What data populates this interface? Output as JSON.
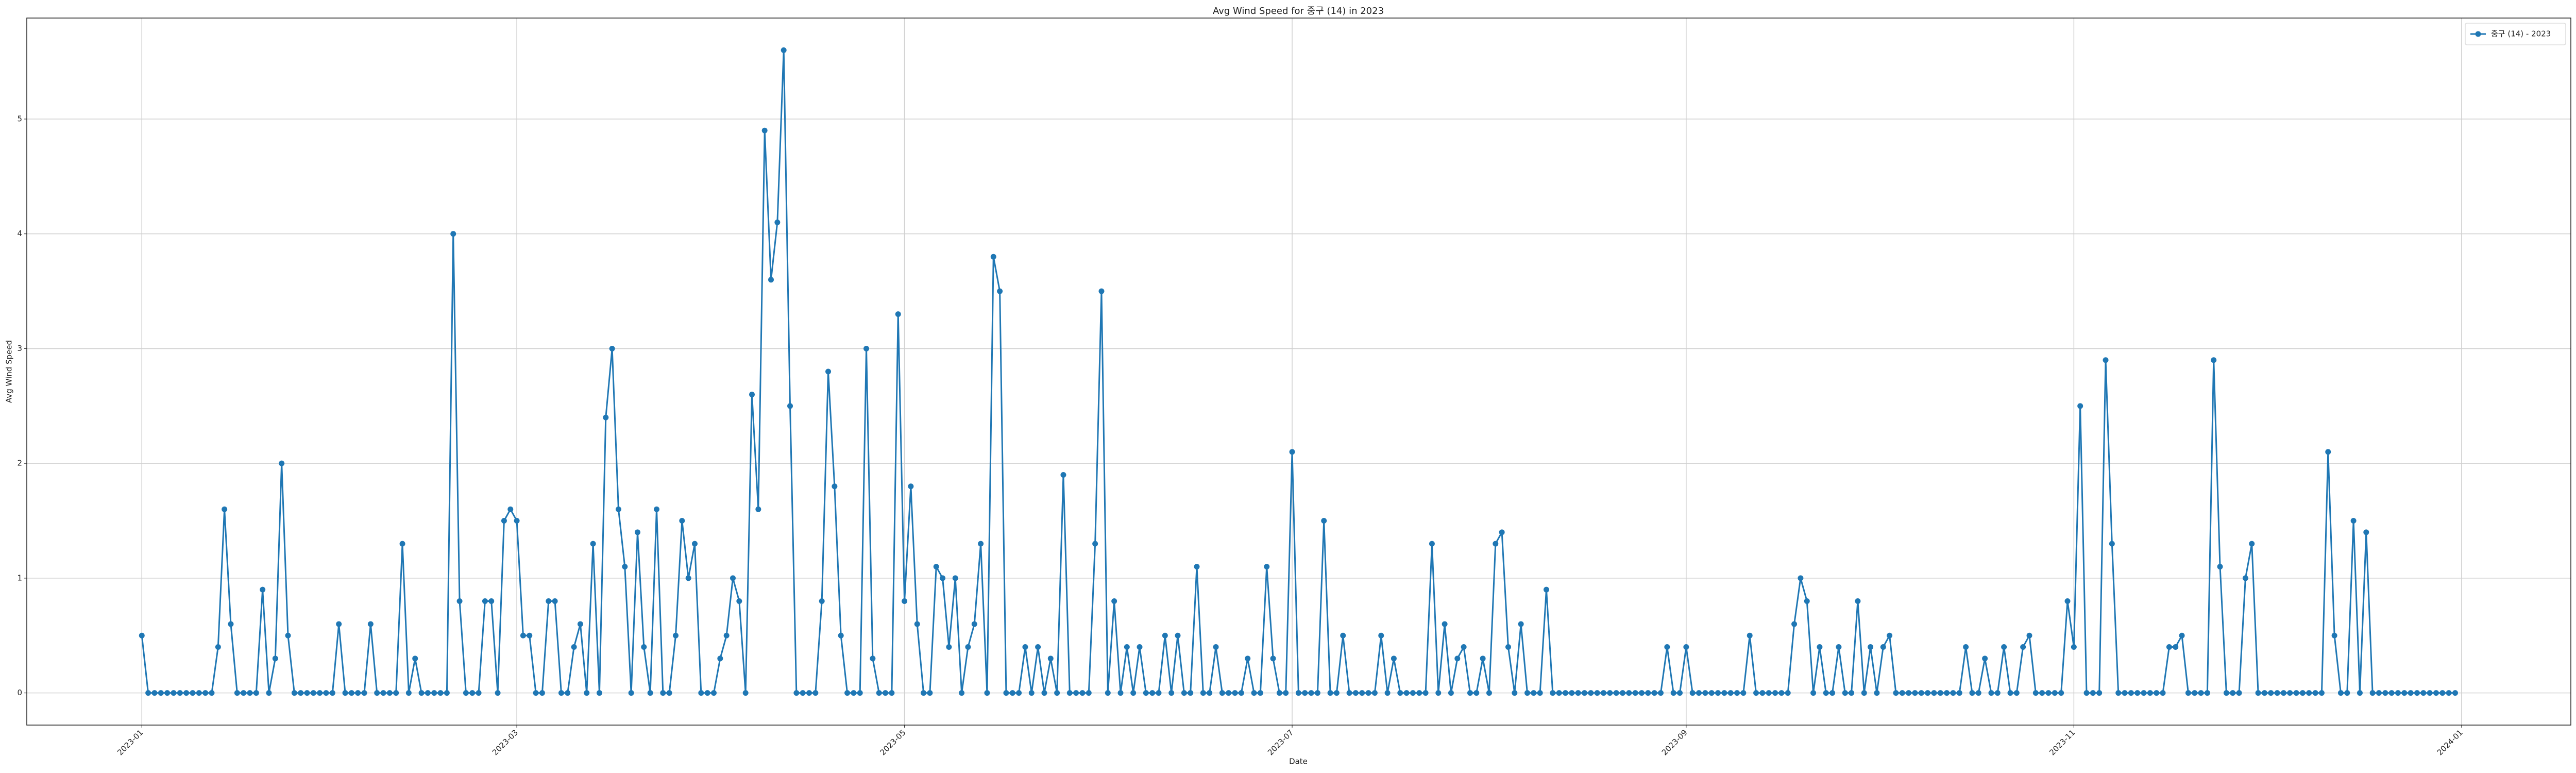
{
  "chart_data": {
    "type": "line",
    "title": "Avg Wind Speed for 중구 (14) in 2023",
    "xlabel": "Date",
    "ylabel": "Avg Wind Speed",
    "x": [
      0,
      1,
      2,
      3,
      4,
      5,
      6,
      7,
      8,
      9,
      10,
      11,
      12,
      13,
      14,
      15,
      16,
      17,
      18,
      19,
      20,
      21,
      22,
      23,
      24,
      25,
      26,
      27,
      28,
      29,
      30,
      31,
      32,
      33,
      34,
      35,
      36,
      37,
      38,
      39,
      40,
      41,
      42,
      43,
      44,
      45,
      46,
      47,
      48,
      49,
      50,
      51,
      52,
      53,
      54,
      55,
      56,
      57,
      58,
      59,
      60,
      61,
      62,
      63,
      64,
      65,
      66,
      67,
      68,
      69,
      70,
      71,
      72,
      73,
      74,
      75,
      76,
      77,
      78,
      79,
      80,
      81,
      82,
      83,
      84,
      85,
      86,
      87,
      88,
      89,
      90,
      91,
      92,
      93,
      94,
      95,
      96,
      97,
      98,
      99,
      100,
      101,
      102,
      103,
      104,
      105,
      106,
      107,
      108,
      109,
      110,
      111,
      112,
      113,
      114,
      115,
      116,
      117,
      118,
      119,
      120,
      121,
      122,
      123,
      124,
      125,
      126,
      127,
      128,
      129,
      130,
      131,
      132,
      133,
      134,
      135,
      136,
      137,
      138,
      139,
      140,
      141,
      142,
      143,
      144,
      145,
      146,
      147,
      148,
      149,
      150,
      151,
      152,
      153,
      154,
      155,
      156,
      157,
      158,
      159,
      160,
      161,
      162,
      163,
      164,
      165,
      166,
      167,
      168,
      169,
      170,
      171,
      172,
      173,
      174,
      175,
      176,
      177,
      178,
      179,
      180,
      181,
      182,
      183,
      184,
      185,
      186,
      187,
      188,
      189,
      190,
      191,
      192,
      193,
      194,
      195,
      196,
      197,
      198,
      199,
      200,
      201,
      202,
      203,
      204,
      205,
      206,
      207,
      208,
      209,
      210,
      211,
      212,
      213,
      214,
      215,
      216,
      217,
      218,
      219,
      220,
      221,
      222,
      223,
      224,
      225,
      226,
      227,
      228,
      229,
      230,
      231,
      232,
      233,
      234,
      235,
      236,
      237,
      238,
      239,
      240,
      241,
      242,
      243,
      244,
      245,
      246,
      247,
      248,
      249,
      250,
      251,
      252,
      253,
      254,
      255,
      256,
      257,
      258,
      259,
      260,
      261,
      262,
      263,
      264,
      265,
      266,
      267,
      268,
      269,
      270,
      271,
      272,
      273,
      274,
      275,
      276,
      277,
      278,
      279,
      280,
      281,
      282,
      283,
      284,
      285,
      286,
      287,
      288,
      289,
      290,
      291,
      292,
      293,
      294,
      295,
      296,
      297,
      298,
      299,
      300,
      301,
      302,
      303,
      304,
      305,
      306,
      307,
      308,
      309,
      310,
      311,
      312,
      313,
      314,
      315,
      316,
      317,
      318,
      319,
      320,
      321,
      322,
      323,
      324,
      325,
      326,
      327,
      328,
      329,
      330,
      331,
      332,
      333,
      334,
      335,
      336,
      337,
      338,
      339,
      340,
      341,
      342,
      343,
      344,
      345,
      346,
      347,
      348,
      349,
      350,
      351,
      352,
      353,
      354,
      355,
      356,
      357,
      358,
      359,
      360,
      361,
      362,
      363,
      364
    ],
    "series": [
      {
        "name": "중구 (14) - 2023",
        "color": "#1f77b4",
        "values": [
          0.5,
          0,
          0,
          0,
          0,
          0,
          0,
          0,
          0,
          0,
          0,
          0,
          0.4,
          1.6,
          0.6,
          0,
          0,
          0,
          0,
          0.9,
          0,
          0.3,
          2.0,
          0.5,
          0,
          0,
          0,
          0,
          0,
          0,
          0,
          0.6,
          0,
          0,
          0,
          0,
          0.6,
          0,
          0,
          0,
          0,
          1.3,
          0,
          0.3,
          0,
          0,
          0,
          0,
          0,
          4.0,
          0.8,
          0,
          0,
          0,
          0.8,
          0.8,
          0,
          1.5,
          1.6,
          1.5,
          0.5,
          0.5,
          0,
          0,
          0.8,
          0.8,
          0,
          0,
          0.4,
          0.6,
          0,
          1.3,
          0,
          2.4,
          3.0,
          1.6,
          1.1,
          0,
          1.4,
          0.4,
          0,
          1.6,
          0,
          0,
          0.5,
          1.5,
          1.0,
          1.3,
          0,
          0,
          0,
          0.3,
          0.5,
          1.0,
          0.8,
          0,
          2.6,
          1.6,
          4.9,
          3.6,
          4.1,
          5.6,
          2.5,
          0,
          0,
          0,
          0,
          0.8,
          2.8,
          1.8,
          0.5,
          0,
          0,
          0,
          3.0,
          0.3,
          0,
          0,
          0,
          3.3,
          0.8,
          1.8,
          0.6,
          0,
          0,
          1.1,
          1.0,
          0.4,
          1.0,
          0,
          0.4,
          0.6,
          1.3,
          0,
          3.8,
          3.5,
          0,
          0,
          0,
          0.4,
          0,
          0.4,
          0,
          0.3,
          0,
          1.9,
          0,
          0,
          0,
          0,
          1.3,
          3.5,
          0,
          0.8,
          0,
          0.4,
          0,
          0.4,
          0,
          0,
          0,
          0.5,
          0,
          0.5,
          0,
          0,
          1.1,
          0,
          0,
          0.4,
          0,
          0,
          0,
          0,
          0.3,
          0,
          0,
          1.1,
          0.3,
          0,
          0,
          2.1,
          0,
          0,
          0,
          0,
          1.5,
          0,
          0,
          0.5,
          0,
          0,
          0,
          0,
          0,
          0.5,
          0,
          0.3,
          0,
          0,
          0,
          0,
          0,
          1.3,
          0,
          0.6,
          0,
          0.3,
          0.4,
          0,
          0,
          0.3,
          0,
          1.3,
          1.4,
          0.4,
          0,
          0.6,
          0,
          0,
          0,
          0.9,
          0,
          0,
          0,
          0,
          0,
          0,
          0,
          0,
          0,
          0,
          0,
          0,
          0,
          0,
          0,
          0,
          0,
          0,
          0.4,
          0,
          0,
          0.4,
          0,
          0,
          0,
          0,
          0,
          0,
          0,
          0,
          0,
          0.5,
          0,
          0,
          0,
          0,
          0,
          0,
          0.6,
          1.0,
          0.8,
          0,
          0.4,
          0,
          0,
          0.4,
          0,
          0,
          0.8,
          0,
          0.4,
          0,
          0.4,
          0.5,
          0,
          0,
          0,
          0,
          0,
          0,
          0,
          0,
          0,
          0,
          0,
          0.4,
          0,
          0,
          0.3,
          0,
          0,
          0.4,
          0,
          0,
          0.4,
          0.5,
          0,
          0,
          0,
          0,
          0,
          0.8,
          0.4,
          2.5,
          0,
          0,
          0,
          2.9,
          1.3,
          0,
          0,
          0,
          0,
          0,
          0,
          0,
          0,
          0.4,
          0.4,
          0.5,
          0,
          0,
          0,
          0,
          2.9,
          1.1,
          0,
          0,
          0,
          1.0,
          1.3,
          0,
          0,
          0,
          0,
          0,
          0,
          0,
          0,
          0,
          0,
          0,
          2.1,
          0.5,
          0,
          0,
          1.5,
          0,
          1.4,
          0,
          0,
          0,
          0,
          0,
          0,
          0,
          0,
          0,
          0,
          0,
          0,
          0,
          0
        ]
      }
    ],
    "xlim": [
      -18.1,
      382.2
    ],
    "xticks": [
      {
        "value": 0,
        "label": "2023-01"
      },
      {
        "value": 59,
        "label": "2023-03"
      },
      {
        "value": 120,
        "label": "2023-05"
      },
      {
        "value": 181,
        "label": "2023-07"
      },
      {
        "value": 243,
        "label": "2023-09"
      },
      {
        "value": 304,
        "label": "2023-11"
      },
      {
        "value": 365,
        "label": "2024-01"
      }
    ],
    "ylim": [
      -0.28,
      5.88
    ],
    "yticks": [
      0,
      1,
      2,
      3,
      4,
      5
    ],
    "grid": true,
    "legend": "upper right"
  }
}
